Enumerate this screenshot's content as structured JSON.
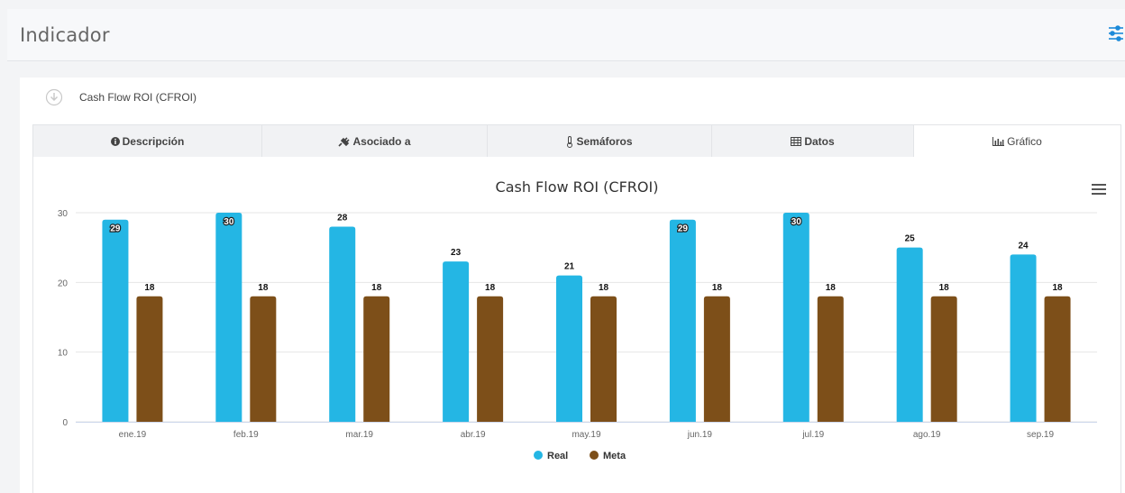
{
  "header": {
    "title": "Indicador",
    "filter_icon": "sliders-icon",
    "accent": "#1c8ad9"
  },
  "indicator": {
    "name": "Cash Flow ROI (CFROI)",
    "icon": "circle-arrow-down-icon"
  },
  "tabs": [
    {
      "label": "Descripción",
      "icon": "info-icon",
      "active": false
    },
    {
      "label": "Asociado a",
      "icon": "plug-icon",
      "active": false
    },
    {
      "label": "Semáforos",
      "icon": "thermometer-icon",
      "active": false
    },
    {
      "label": "Datos",
      "icon": "table-icon",
      "active": false
    },
    {
      "label": "Gráfico",
      "icon": "bar-chart-icon",
      "active": true
    }
  ],
  "chart_data": {
    "type": "bar",
    "title": "Cash Flow ROI (CFROI)",
    "categories": [
      "ene.19",
      "feb.19",
      "mar.19",
      "abr.19",
      "may.19",
      "jun.19",
      "jul.19",
      "ago.19",
      "sep.19"
    ],
    "series": [
      {
        "name": "Real",
        "color": "#24b6e4",
        "values": [
          29,
          30,
          28,
          23,
          21,
          29,
          30,
          25,
          24
        ]
      },
      {
        "name": "Meta",
        "color": "#7d4f19",
        "values": [
          18,
          18,
          18,
          18,
          18,
          18,
          18,
          18,
          18
        ]
      }
    ],
    "ylim": [
      0,
      30
    ],
    "yticks": [
      "0",
      "10",
      "20",
      "30"
    ],
    "grid": true,
    "legend": "bottom-center"
  }
}
